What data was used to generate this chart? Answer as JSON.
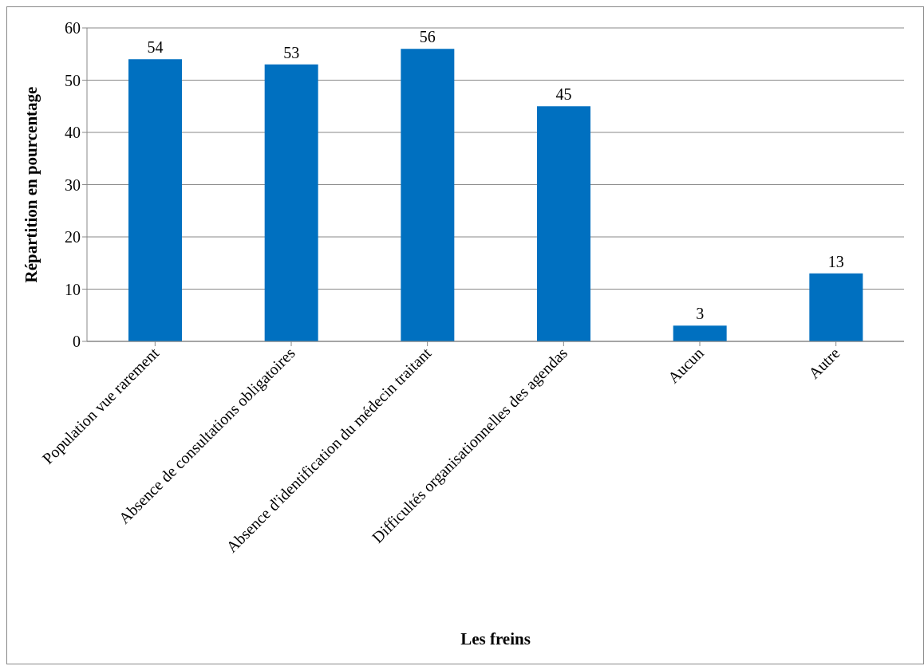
{
  "chart_data": {
    "type": "bar",
    "xlabel": "Les freins",
    "ylabel": "Répartition en pourcentage",
    "categories": [
      "Population vue rarement",
      "Absence de consultations obligatoires",
      "Absence d'identification du médecin traitant",
      "Difficultés organisationnelles des agendas",
      "Aucun",
      "Autre"
    ],
    "values": [
      54,
      53,
      56,
      45,
      3,
      13
    ],
    "color": "#0070c0",
    "ylim": [
      0,
      60
    ],
    "yticks": [
      0,
      10,
      20,
      30,
      40,
      50,
      60
    ],
    "grid": "y",
    "data_labels": true
  }
}
